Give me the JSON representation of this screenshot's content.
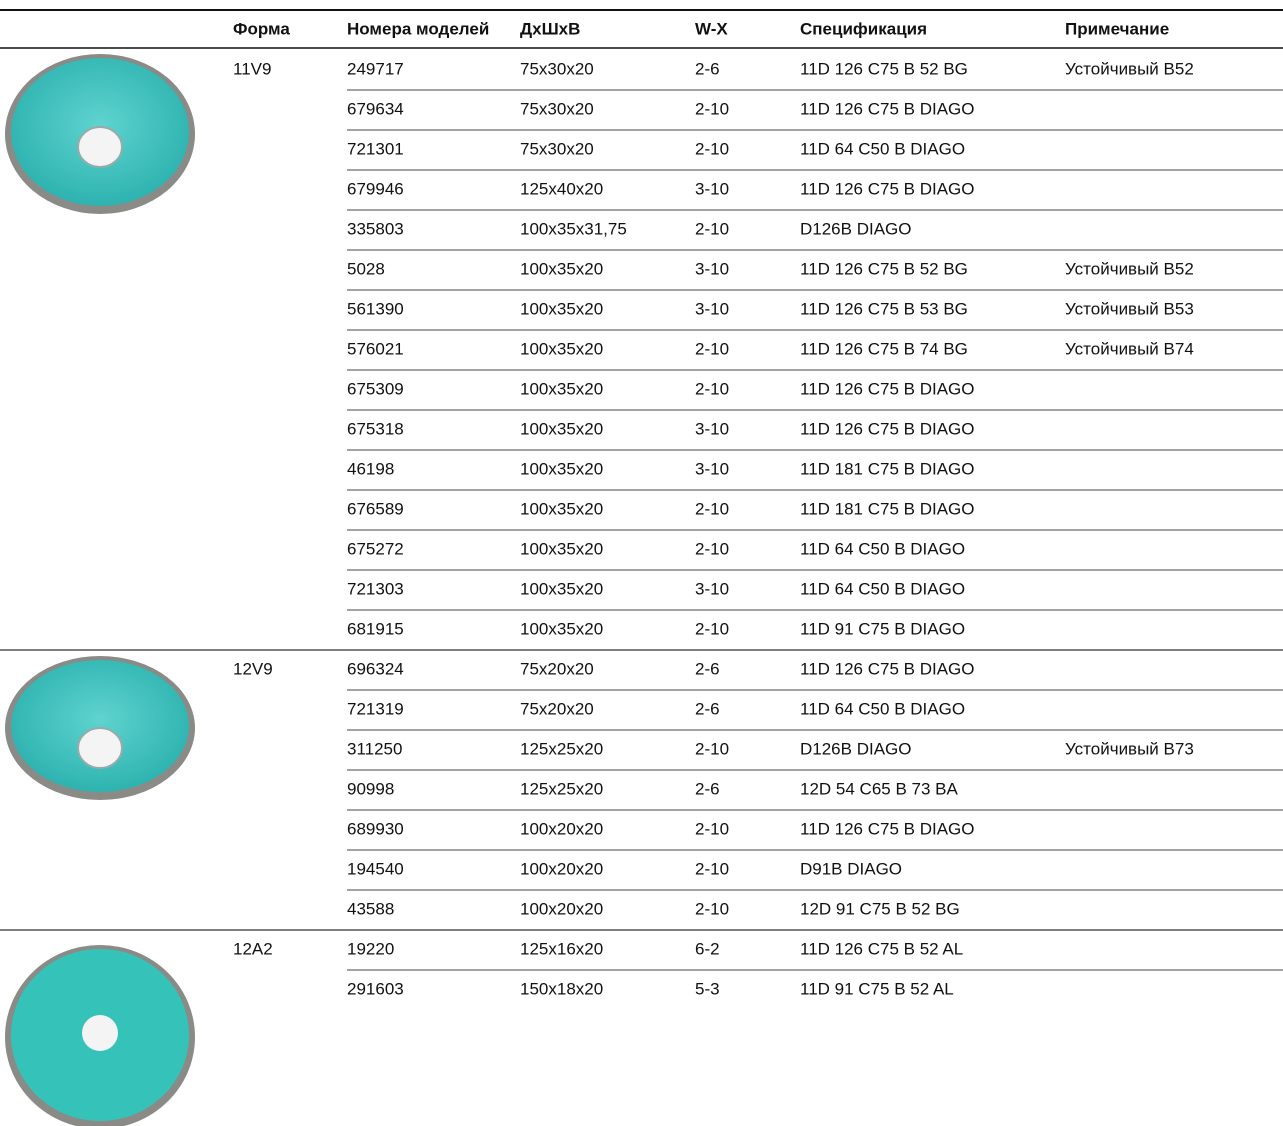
{
  "table": {
    "header": [
      "Форма",
      "Номера моделей",
      "ДхШхВ",
      "W-X",
      "Спецификация",
      "Примечание"
    ],
    "groups": [
      {
        "form": "11V9",
        "rows": [
          {
            "model": "249717",
            "size": "75x30x20",
            "wx": "2-6",
            "spec": "11D 126 C75 B 52 BG",
            "note": "Устойчивый B52"
          },
          {
            "model": "679634",
            "size": "75x30x20",
            "wx": "2-10",
            "spec": "11D 126 C75 B DIAGO"
          },
          {
            "model": "721301",
            "size": "75x30x20",
            "wx": "2-10",
            "spec": "11D 64 C50 B DIAGO"
          },
          {
            "model": "679946",
            "size": "125x40x20",
            "wx": "3-10",
            "spec": "11D 126 C75 B DIAGO"
          },
          {
            "model": "335803",
            "size": "100x35x31,75",
            "wx": "2-10",
            "spec": "D126B DIAGO"
          },
          {
            "model": "5028",
            "size": "100x35x20",
            "wx": "3-10",
            "spec": "11D 126 C75 B 52 BG",
            "note": "Устойчивый B52"
          },
          {
            "model": "561390",
            "size": "100x35x20",
            "wx": "3-10",
            "spec": "11D 126 C75 B 53 BG",
            "note": "Устойчивый B53"
          },
          {
            "model": "576021",
            "size": "100x35x20",
            "wx": "2-10",
            "spec": "11D 126 C75 B 74 BG",
            "note": "Устойчивый B74"
          },
          {
            "model": "675309",
            "size": "100x35x20",
            "wx": "2-10",
            "spec": "11D 126 C75 B DIAGO"
          },
          {
            "model": "675318",
            "size": "100x35x20",
            "wx": "3-10",
            "spec": "11D 126 C75 B DIAGO"
          },
          {
            "model": "46198",
            "size": "100x35x20",
            "wx": "3-10",
            "spec": "11D 181 C75 B DIAGO"
          },
          {
            "model": "676589",
            "size": "100x35x20",
            "wx": "2-10",
            "spec": "11D 181 C75 B DIAGO"
          },
          {
            "model": "675272",
            "size": "100x35x20",
            "wx": "2-10",
            "spec": "11D 64 C50 B DIAGO"
          },
          {
            "model": "721303",
            "size": "100x35x20",
            "wx": "3-10",
            "spec": "11D 64 C50 B DIAGO"
          },
          {
            "model": "681915",
            "size": "100x35x20",
            "wx": "2-10",
            "spec": "11D 91 C75 B DIAGO"
          }
        ]
      },
      {
        "form": "12V9",
        "rows": [
          {
            "model": "696324",
            "size": "75x20x20",
            "wx": "2-6",
            "spec": "11D 126 C75 B DIAGO"
          },
          {
            "model": "721319",
            "size": "75x20x20",
            "wx": "2-6",
            "spec": "11D 64 C50 B DIAGO"
          },
          {
            "model": "311250",
            "size": "125x25x20",
            "wx": "2-10",
            "spec": "D126B DIAGO",
            "note": "Устойчивый B73"
          },
          {
            "model": "90998",
            "size": "125x25x20",
            "wx": "2-6",
            "spec": "12D 54 C65 B 73 BA"
          },
          {
            "model": "689930",
            "size": "100x20x20",
            "wx": "2-10",
            "spec": "11D 126 C75 B DIAGO"
          },
          {
            "model": "194540",
            "size": "100x20x20",
            "wx": "2-10",
            "spec": "D91B DIAGO"
          },
          {
            "model": "43588",
            "size": "100x20x20",
            "wx": "2-10",
            "spec": "12D 91 C75 B 52 BG"
          }
        ]
      },
      {
        "form": "12A2",
        "rows": [
          {
            "model": "19220",
            "size": "125x16x20",
            "wx": "6-2",
            "spec": "11D 126 C75 B 52 AL"
          },
          {
            "model": "291603",
            "size": "150x18x20",
            "wx": "5-3",
            "spec": "11D 91 C75 B 52 AL"
          }
        ]
      }
    ]
  }
}
